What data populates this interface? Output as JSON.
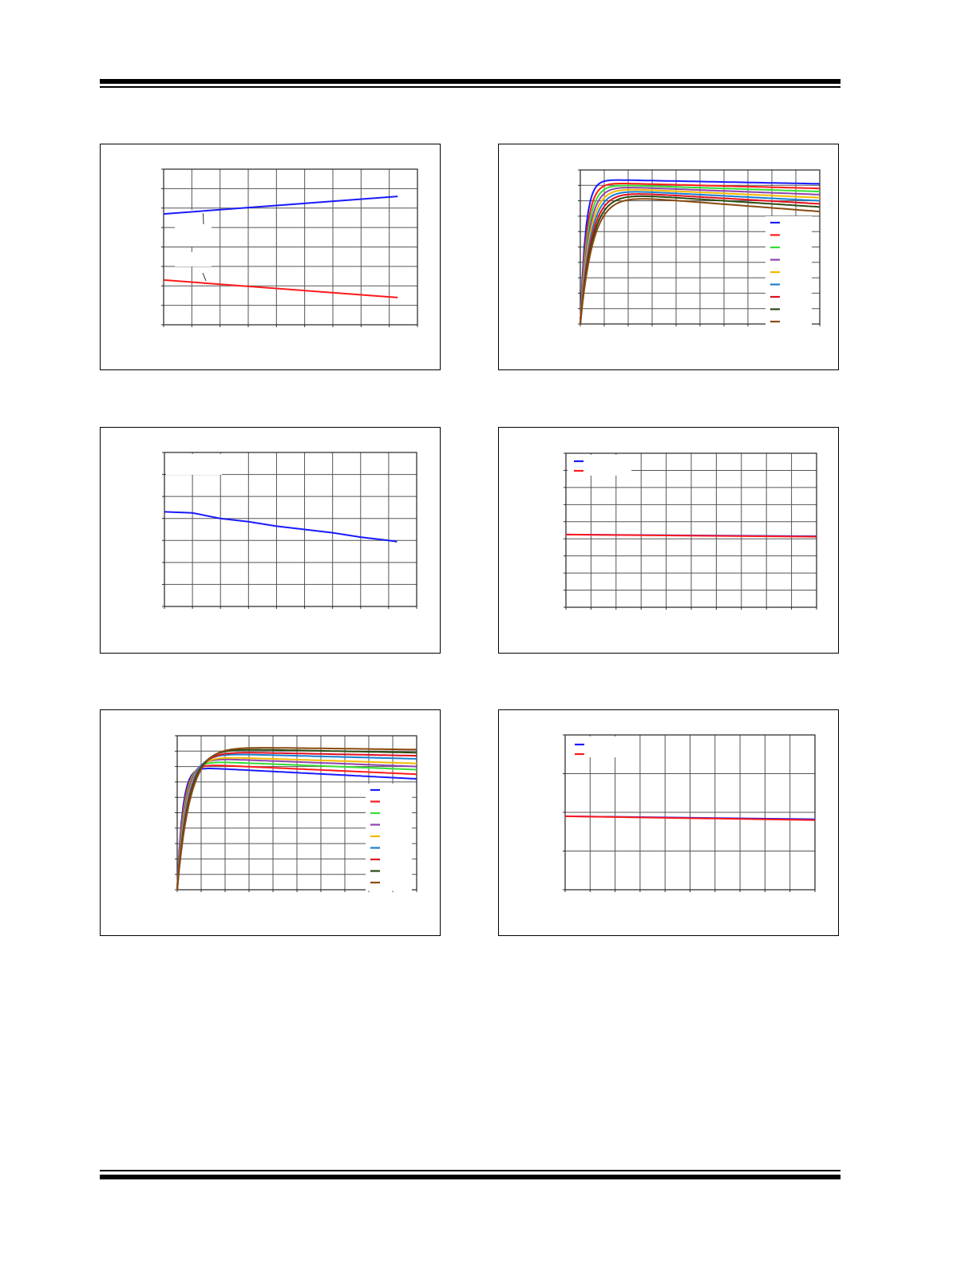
{
  "colors": {
    "blue": "#1a1aff",
    "red": "#ff1a1a",
    "green": "#33dd33",
    "purple": "#8e44ad",
    "yellow": "#f5b800",
    "cyan": "#1a7fd0",
    "crimson": "#e01020",
    "darkgreen": "#2a4a10",
    "brown": "#8b4a10"
  },
  "chart_data": [
    {
      "type": "line",
      "panel": "top-left",
      "xlim": [
        0,
        9
      ],
      "ylim": [
        0,
        8
      ],
      "grid": true,
      "series": [
        {
          "color": "blue",
          "x": [
            0,
            8.3
          ],
          "y": [
            5.7,
            6.6
          ]
        },
        {
          "color": "red",
          "x": [
            0,
            8.3
          ],
          "y": [
            2.3,
            1.4
          ]
        }
      ]
    },
    {
      "type": "line",
      "panel": "top-right",
      "xlim": [
        0,
        10
      ],
      "ylim": [
        0,
        10
      ],
      "grid": true,
      "legend": "right",
      "series": [
        {
          "color": "blue",
          "peak": 9.4,
          "end": 9.1
        },
        {
          "color": "red",
          "peak": 9.2,
          "end": 8.8
        },
        {
          "color": "green",
          "peak": 9.1,
          "end": 8.6
        },
        {
          "color": "purple",
          "peak": 9.0,
          "end": 8.4
        },
        {
          "color": "yellow",
          "peak": 8.9,
          "end": 8.2
        },
        {
          "color": "cyan",
          "peak": 8.8,
          "end": 8.0
        },
        {
          "color": "crimson",
          "peak": 8.7,
          "end": 7.8
        },
        {
          "color": "darkgreen",
          "peak": 8.6,
          "end": 7.6
        },
        {
          "color": "brown",
          "peak": 8.5,
          "end": 7.3
        }
      ]
    },
    {
      "type": "line",
      "panel": "middle-left",
      "xlim": [
        0,
        9
      ],
      "ylim": [
        0,
        7
      ],
      "grid": true,
      "series": [
        {
          "color": "blue",
          "x": [
            0,
            1,
            2,
            3,
            4,
            5,
            6,
            7,
            8,
            8.3
          ],
          "y": [
            4.3,
            4.25,
            4.0,
            3.85,
            3.65,
            3.5,
            3.35,
            3.15,
            3.0,
            2.95
          ]
        }
      ]
    },
    {
      "type": "line",
      "panel": "middle-right",
      "xlim": [
        0,
        10
      ],
      "ylim": [
        0,
        9
      ],
      "grid": true,
      "legend": "top-left",
      "series": [
        {
          "color": "blue",
          "x": [
            0,
            10
          ],
          "y": [
            4.25,
            4.15
          ]
        },
        {
          "color": "red",
          "x": [
            0,
            10
          ],
          "y": [
            4.25,
            4.12
          ]
        }
      ]
    },
    {
      "type": "line",
      "panel": "bottom-left",
      "xlim": [
        0,
        10
      ],
      "ylim": [
        0,
        10
      ],
      "grid": true,
      "legend": "right",
      "series": [
        {
          "color": "blue",
          "peak": 8.0,
          "end": 7.2
        },
        {
          "color": "red",
          "peak": 8.2,
          "end": 7.5
        },
        {
          "color": "green",
          "peak": 8.4,
          "end": 7.8
        },
        {
          "color": "purple",
          "peak": 8.6,
          "end": 8.0
        },
        {
          "color": "yellow",
          "peak": 8.7,
          "end": 8.2
        },
        {
          "color": "cyan",
          "peak": 8.9,
          "end": 8.5
        },
        {
          "color": "crimson",
          "peak": 9.0,
          "end": 8.7
        },
        {
          "color": "darkgreen",
          "peak": 9.2,
          "end": 8.9
        },
        {
          "color": "brown",
          "peak": 9.3,
          "end": 9.1
        }
      ]
    },
    {
      "type": "line",
      "panel": "bottom-right",
      "xlim": [
        0,
        10
      ],
      "ylim": [
        0,
        4
      ],
      "grid": true,
      "legend": "top-left",
      "series": [
        {
          "color": "blue",
          "x": [
            0,
            10
          ],
          "y": [
            1.9,
            1.82
          ]
        },
        {
          "color": "red",
          "x": [
            0,
            10
          ],
          "y": [
            1.9,
            1.8
          ]
        }
      ]
    }
  ]
}
